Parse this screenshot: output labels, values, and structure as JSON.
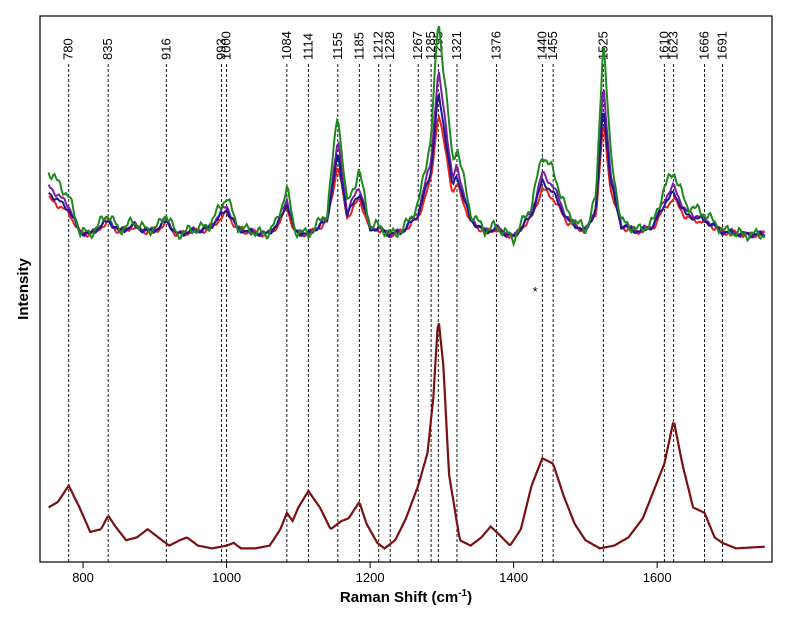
{
  "chart_data": {
    "type": "line",
    "xlabel": "Raman Shift (cm",
    "xlabel_sup": "-1",
    "xlabel_close": ")",
    "ylabel": "Intensity",
    "xlim": [
      740,
      1760
    ],
    "ylim": [
      0,
      100
    ],
    "x_ticks": [
      800,
      1000,
      1200,
      1400,
      1600
    ],
    "grid": false,
    "legend": "none",
    "annotation": "*",
    "annotation_at": 1430,
    "peak_lines": [
      "780",
      "835",
      "916",
      "993",
      "1000",
      "1084",
      "1114",
      "1155",
      "1185",
      "1212",
      "1228",
      "1267",
      "1285",
      "1295",
      "1321",
      "1376",
      "1440",
      "1455",
      "1525",
      "1610",
      "1623",
      "1666",
      "1691"
    ],
    "baseline_raw": [
      [
        752,
        66
      ],
      [
        780,
        63
      ],
      [
        795,
        59
      ],
      [
        810,
        58.5
      ],
      [
        835,
        61
      ],
      [
        850,
        59
      ],
      [
        870,
        60
      ],
      [
        890,
        59
      ],
      [
        905,
        59.5
      ],
      [
        916,
        61
      ],
      [
        930,
        58.5
      ],
      [
        950,
        59
      ],
      [
        975,
        59.5
      ],
      [
        993,
        62
      ],
      [
        1000,
        63
      ],
      [
        1015,
        59.5
      ],
      [
        1030,
        59
      ],
      [
        1055,
        58.5
      ],
      [
        1070,
        60
      ],
      [
        1084,
        64
      ],
      [
        1095,
        59
      ],
      [
        1114,
        58.5
      ],
      [
        1140,
        61
      ],
      [
        1155,
        73
      ],
      [
        1168,
        62
      ],
      [
        1185,
        66
      ],
      [
        1200,
        59.5
      ],
      [
        1212,
        59.5
      ],
      [
        1228,
        58.5
      ],
      [
        1245,
        59
      ],
      [
        1267,
        62
      ],
      [
        1285,
        70
      ],
      [
        1295,
        84
      ],
      [
        1305,
        76
      ],
      [
        1315,
        67
      ],
      [
        1321,
        69
      ],
      [
        1340,
        61
      ],
      [
        1360,
        59
      ],
      [
        1376,
        59.5
      ],
      [
        1400,
        58
      ],
      [
        1425,
        62
      ],
      [
        1440,
        68
      ],
      [
        1455,
        66
      ],
      [
        1475,
        61
      ],
      [
        1500,
        59
      ],
      [
        1515,
        63
      ],
      [
        1525,
        82
      ],
      [
        1535,
        68
      ],
      [
        1550,
        60
      ],
      [
        1575,
        59
      ],
      [
        1595,
        60
      ],
      [
        1610,
        64
      ],
      [
        1623,
        66
      ],
      [
        1640,
        62
      ],
      [
        1666,
        61
      ],
      [
        1691,
        59
      ],
      [
        1720,
        58.5
      ],
      [
        1750,
        58.5
      ]
    ],
    "series": [
      {
        "color": "#e8211c",
        "gain": 0.88,
        "noise": 0.35,
        "phase": 0.0
      },
      {
        "color": "#7a1fa0",
        "gain": 1.18,
        "noise": 0.4,
        "phase": 1.3
      },
      {
        "color": "#1a1a8e",
        "gain": 1.02,
        "noise": 0.35,
        "phase": 2.1
      },
      {
        "color": "#1e8a1e",
        "gain": 1.55,
        "noise": 0.7,
        "phase": 3.7
      }
    ],
    "reference_color": "#7b1010",
    "reference_points": [
      [
        752,
        10
      ],
      [
        765,
        11
      ],
      [
        780,
        14
      ],
      [
        795,
        10
      ],
      [
        810,
        5.5
      ],
      [
        825,
        6
      ],
      [
        835,
        8.5
      ],
      [
        845,
        6.5
      ],
      [
        860,
        4
      ],
      [
        875,
        4.5
      ],
      [
        890,
        6
      ],
      [
        905,
        4.5
      ],
      [
        920,
        3
      ],
      [
        935,
        4
      ],
      [
        945,
        4.5
      ],
      [
        960,
        3
      ],
      [
        980,
        2.5
      ],
      [
        1000,
        3
      ],
      [
        1010,
        3.5
      ],
      [
        1020,
        2.5
      ],
      [
        1040,
        2.5
      ],
      [
        1060,
        3
      ],
      [
        1075,
        6
      ],
      [
        1084,
        9
      ],
      [
        1092,
        7.5
      ],
      [
        1100,
        10
      ],
      [
        1114,
        13
      ],
      [
        1130,
        10
      ],
      [
        1145,
        6
      ],
      [
        1160,
        7.5
      ],
      [
        1170,
        8
      ],
      [
        1185,
        11
      ],
      [
        1195,
        7
      ],
      [
        1210,
        3.5
      ],
      [
        1220,
        2.5
      ],
      [
        1235,
        4
      ],
      [
        1250,
        8
      ],
      [
        1267,
        14
      ],
      [
        1280,
        20
      ],
      [
        1288,
        30
      ],
      [
        1295,
        45
      ],
      [
        1302,
        36
      ],
      [
        1310,
        16
      ],
      [
        1325,
        4
      ],
      [
        1340,
        3
      ],
      [
        1355,
        4.5
      ],
      [
        1368,
        6.5
      ],
      [
        1380,
        5
      ],
      [
        1395,
        3
      ],
      [
        1410,
        6
      ],
      [
        1425,
        14
      ],
      [
        1440,
        19
      ],
      [
        1455,
        18
      ],
      [
        1470,
        12
      ],
      [
        1485,
        7
      ],
      [
        1500,
        4
      ],
      [
        1520,
        2.5
      ],
      [
        1540,
        3
      ],
      [
        1560,
        4.5
      ],
      [
        1580,
        8
      ],
      [
        1595,
        13
      ],
      [
        1610,
        18
      ],
      [
        1623,
        26
      ],
      [
        1635,
        18
      ],
      [
        1650,
        10
      ],
      [
        1666,
        9
      ],
      [
        1680,
        4.5
      ],
      [
        1691,
        3.5
      ],
      [
        1710,
        2.5
      ],
      [
        1750,
        2.8
      ]
    ]
  }
}
